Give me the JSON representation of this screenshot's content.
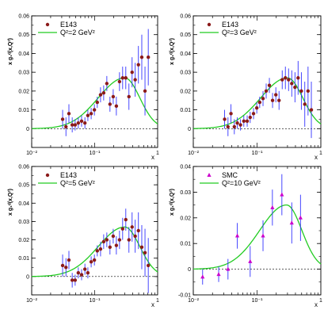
{
  "colors": {
    "curve": "#22cc22",
    "error_bar": "#3333ff",
    "marker_e143": "#8b1a1a",
    "marker_smc": "#cc00cc",
    "axis": "#000000"
  },
  "chart_data": [
    {
      "type": "scatter",
      "legend": {
        "marker_label": "E143",
        "curve_label": "Q²=2 GeV²",
        "marker": "circle",
        "placement": "top-left"
      },
      "xlabel": "x",
      "ylabel": "x g₁ᵈ(x,Q²)",
      "xscale": "log",
      "xlim": [
        0.01,
        1
      ],
      "ylim": [
        -0.01,
        0.06
      ],
      "yticks": [
        "0",
        "0.01",
        "0.02",
        "0.03",
        "0.04",
        "0.05",
        "0.06"
      ],
      "xticks": [
        "10⁻²",
        "10⁻¹",
        "1"
      ],
      "points": [
        {
          "x": 0.031,
          "y": 0.005,
          "err": 0.005
        },
        {
          "x": 0.035,
          "y": 0.001,
          "err": 0.005
        },
        {
          "x": 0.039,
          "y": 0.008,
          "err": 0.005
        },
        {
          "x": 0.044,
          "y": 0.002,
          "err": 0.004
        },
        {
          "x": 0.049,
          "y": 0.002,
          "err": 0.003
        },
        {
          "x": 0.055,
          "y": 0.003,
          "err": 0.003
        },
        {
          "x": 0.062,
          "y": 0.004,
          "err": 0.003
        },
        {
          "x": 0.07,
          "y": 0.003,
          "err": 0.003
        },
        {
          "x": 0.078,
          "y": 0.007,
          "err": 0.003
        },
        {
          "x": 0.088,
          "y": 0.008,
          "err": 0.003
        },
        {
          "x": 0.099,
          "y": 0.01,
          "err": 0.003
        },
        {
          "x": 0.11,
          "y": 0.014,
          "err": 0.003
        },
        {
          "x": 0.124,
          "y": 0.018,
          "err": 0.004
        },
        {
          "x": 0.139,
          "y": 0.019,
          "err": 0.004
        },
        {
          "x": 0.156,
          "y": 0.024,
          "err": 0.004
        },
        {
          "x": 0.175,
          "y": 0.013,
          "err": 0.004
        },
        {
          "x": 0.197,
          "y": 0.017,
          "err": 0.004
        },
        {
          "x": 0.221,
          "y": 0.012,
          "err": 0.005
        },
        {
          "x": 0.248,
          "y": 0.025,
          "err": 0.005
        },
        {
          "x": 0.278,
          "y": 0.027,
          "err": 0.006
        },
        {
          "x": 0.312,
          "y": 0.027,
          "err": 0.006
        },
        {
          "x": 0.35,
          "y": 0.017,
          "err": 0.007
        },
        {
          "x": 0.393,
          "y": 0.03,
          "err": 0.008
        },
        {
          "x": 0.44,
          "y": 0.026,
          "err": 0.009
        },
        {
          "x": 0.495,
          "y": 0.034,
          "err": 0.01
        },
        {
          "x": 0.56,
          "y": 0.038,
          "err": 0.012
        },
        {
          "x": 0.63,
          "y": 0.02,
          "err": 0.013
        },
        {
          "x": 0.71,
          "y": 0.038,
          "err": 0.015
        }
      ],
      "curve": {
        "peak_x": 0.3,
        "peak_y": 0.027
      }
    },
    {
      "type": "scatter",
      "legend": {
        "marker_label": "E143",
        "curve_label": "Q²=3 GeV²",
        "marker": "circle",
        "placement": "top-left"
      },
      "xlabel": "x",
      "ylabel": "x g₁ᵈ(x,Q²)",
      "xscale": "log",
      "xlim": [
        0.01,
        1
      ],
      "ylim": [
        -0.01,
        0.06
      ],
      "yticks": [
        "0",
        "0.01",
        "0.02",
        "0.03",
        "0.04",
        "0.05",
        "0.06"
      ],
      "xticks": [
        "10⁻²",
        "10⁻¹",
        "1"
      ],
      "points": [
        {
          "x": 0.031,
          "y": 0.005,
          "err": 0.005
        },
        {
          "x": 0.035,
          "y": 0.001,
          "err": 0.005
        },
        {
          "x": 0.039,
          "y": 0.008,
          "err": 0.005
        },
        {
          "x": 0.044,
          "y": 0.001,
          "err": 0.004
        },
        {
          "x": 0.049,
          "y": 0.003,
          "err": 0.003
        },
        {
          "x": 0.055,
          "y": 0.002,
          "err": 0.003
        },
        {
          "x": 0.062,
          "y": 0.004,
          "err": 0.003
        },
        {
          "x": 0.07,
          "y": 0.004,
          "err": 0.003
        },
        {
          "x": 0.078,
          "y": 0.006,
          "err": 0.003
        },
        {
          "x": 0.088,
          "y": 0.008,
          "err": 0.003
        },
        {
          "x": 0.099,
          "y": 0.011,
          "err": 0.003
        },
        {
          "x": 0.11,
          "y": 0.014,
          "err": 0.003
        },
        {
          "x": 0.124,
          "y": 0.016,
          "err": 0.004
        },
        {
          "x": 0.139,
          "y": 0.02,
          "err": 0.004
        },
        {
          "x": 0.156,
          "y": 0.023,
          "err": 0.004
        },
        {
          "x": 0.175,
          "y": 0.015,
          "err": 0.004
        },
        {
          "x": 0.197,
          "y": 0.018,
          "err": 0.004
        },
        {
          "x": 0.221,
          "y": 0.015,
          "err": 0.005
        },
        {
          "x": 0.248,
          "y": 0.026,
          "err": 0.005
        },
        {
          "x": 0.278,
          "y": 0.027,
          "err": 0.006
        },
        {
          "x": 0.312,
          "y": 0.026,
          "err": 0.006
        },
        {
          "x": 0.35,
          "y": 0.024,
          "err": 0.007
        },
        {
          "x": 0.393,
          "y": 0.022,
          "err": 0.008
        },
        {
          "x": 0.44,
          "y": 0.027,
          "err": 0.009
        },
        {
          "x": 0.495,
          "y": 0.02,
          "err": 0.01
        },
        {
          "x": 0.56,
          "y": 0.013,
          "err": 0.012
        },
        {
          "x": 0.63,
          "y": 0.02,
          "err": 0.013
        },
        {
          "x": 0.71,
          "y": 0.01,
          "err": 0.015
        }
      ],
      "curve": {
        "peak_x": 0.3,
        "peak_y": 0.027
      }
    },
    {
      "type": "scatter",
      "legend": {
        "marker_label": "E143",
        "curve_label": "Q²=5 GeV²",
        "marker": "circle",
        "placement": "top-left"
      },
      "xlabel": "x",
      "ylabel": "x g₁ᵈ(x,Q²)",
      "xscale": "log",
      "xlim": [
        0.01,
        1
      ],
      "ylim": [
        -0.01,
        0.06
      ],
      "yticks": [
        "0",
        "0.01",
        "0.02",
        "0.03",
        "0.04",
        "0.05",
        "0.06"
      ],
      "xticks": [
        "10⁻²",
        "10⁻¹",
        "1"
      ],
      "points": [
        {
          "x": 0.031,
          "y": 0.006,
          "err": 0.006
        },
        {
          "x": 0.035,
          "y": 0.005,
          "err": 0.005
        },
        {
          "x": 0.039,
          "y": 0.009,
          "err": 0.005
        },
        {
          "x": 0.044,
          "y": -0.002,
          "err": 0.004
        },
        {
          "x": 0.049,
          "y": -0.002,
          "err": 0.003
        },
        {
          "x": 0.055,
          "y": 0.002,
          "err": 0.003
        },
        {
          "x": 0.062,
          "y": 0.001,
          "err": 0.003
        },
        {
          "x": 0.07,
          "y": 0.004,
          "err": 0.003
        },
        {
          "x": 0.078,
          "y": 0.002,
          "err": 0.003
        },
        {
          "x": 0.088,
          "y": 0.008,
          "err": 0.003
        },
        {
          "x": 0.099,
          "y": 0.009,
          "err": 0.003
        },
        {
          "x": 0.11,
          "y": 0.014,
          "err": 0.003
        },
        {
          "x": 0.124,
          "y": 0.015,
          "err": 0.004
        },
        {
          "x": 0.139,
          "y": 0.019,
          "err": 0.004
        },
        {
          "x": 0.156,
          "y": 0.02,
          "err": 0.004
        },
        {
          "x": 0.175,
          "y": 0.016,
          "err": 0.004
        },
        {
          "x": 0.197,
          "y": 0.022,
          "err": 0.004
        },
        {
          "x": 0.221,
          "y": 0.017,
          "err": 0.005
        },
        {
          "x": 0.248,
          "y": 0.02,
          "err": 0.005
        },
        {
          "x": 0.278,
          "y": 0.026,
          "err": 0.006
        },
        {
          "x": 0.312,
          "y": 0.031,
          "err": 0.006
        },
        {
          "x": 0.35,
          "y": 0.02,
          "err": 0.007
        },
        {
          "x": 0.393,
          "y": 0.027,
          "err": 0.008
        },
        {
          "x": 0.44,
          "y": 0.022,
          "err": 0.009
        },
        {
          "x": 0.495,
          "y": 0.025,
          "err": 0.01
        },
        {
          "x": 0.56,
          "y": 0.016,
          "err": 0.012
        },
        {
          "x": 0.63,
          "y": 0.013,
          "err": 0.013
        },
        {
          "x": 0.71,
          "y": 0.006,
          "err": 0.015
        }
      ],
      "curve": {
        "peak_x": 0.3,
        "peak_y": 0.027
      }
    },
    {
      "type": "scatter",
      "legend": {
        "marker_label": "SMC",
        "curve_label": "Q²=10 GeV²",
        "marker": "triangle",
        "placement": "top-left"
      },
      "xlabel": "x",
      "ylabel": "x g₁ᵈ(x,Q²)",
      "xscale": "log",
      "xlim": [
        0.01,
        1
      ],
      "ylim": [
        -0.01,
        0.04
      ],
      "yticks": [
        "-0.01",
        "0",
        "0.01",
        "0.02",
        "0.03",
        "0.04"
      ],
      "xticks": [
        "10⁻²",
        "10⁻¹",
        "1"
      ],
      "points": [
        {
          "x": 0.014,
          "y": -0.003,
          "err": 0.003
        },
        {
          "x": 0.025,
          "y": -0.002,
          "err": 0.003
        },
        {
          "x": 0.035,
          "y": 0.0,
          "err": 0.004
        },
        {
          "x": 0.049,
          "y": 0.013,
          "err": 0.005
        },
        {
          "x": 0.078,
          "y": 0.003,
          "err": 0.006
        },
        {
          "x": 0.124,
          "y": 0.013,
          "err": 0.006
        },
        {
          "x": 0.174,
          "y": 0.024,
          "err": 0.007
        },
        {
          "x": 0.245,
          "y": 0.029,
          "err": 0.008
        },
        {
          "x": 0.35,
          "y": 0.018,
          "err": 0.008
        },
        {
          "x": 0.48,
          "y": 0.02,
          "err": 0.009
        }
      ],
      "curve": {
        "peak_x": 0.29,
        "peak_y": 0.025
      }
    }
  ]
}
